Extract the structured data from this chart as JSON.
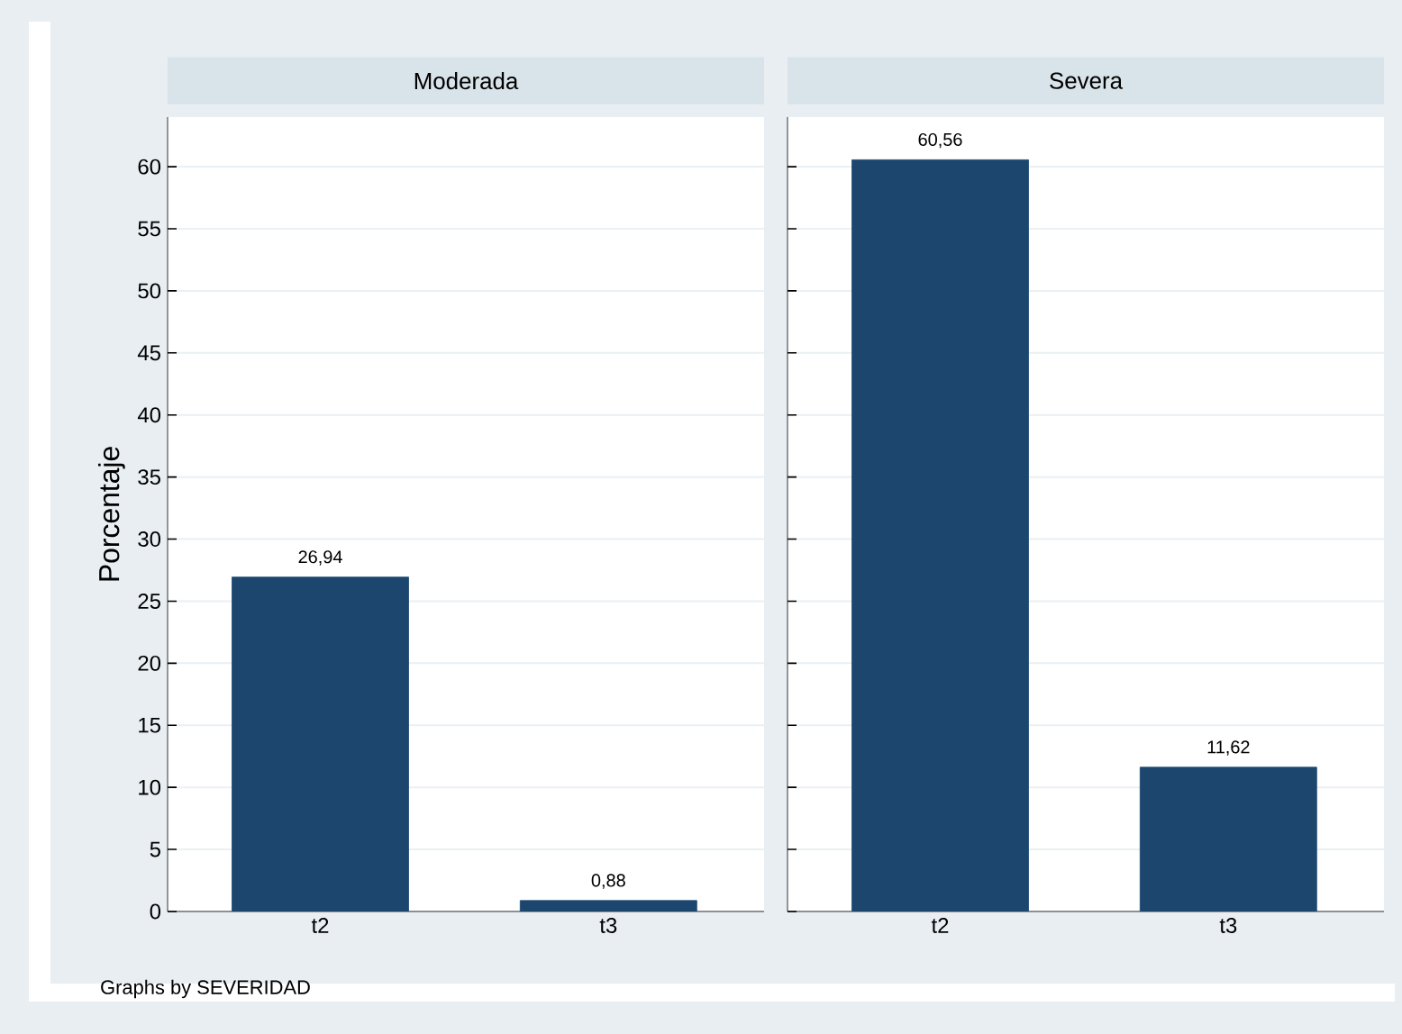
{
  "chart_data": [
    {
      "type": "bar",
      "title": "Moderada",
      "categories": [
        "t2",
        "t3"
      ],
      "values": [
        26.94,
        0.88
      ],
      "value_labels": [
        "26,94",
        "0,88"
      ],
      "color": "#1c466e",
      "ylabel": "Porcentaje",
      "ylim": [
        0,
        64
      ],
      "yticks": [
        0,
        5,
        10,
        15,
        20,
        25,
        30,
        35,
        40,
        45,
        50,
        55,
        60
      ],
      "grid": "y",
      "annotations": [
        "Graphs by SEVERIDAD"
      ]
    },
    {
      "type": "bar",
      "title": "Severa",
      "categories": [
        "t2",
        "t3"
      ],
      "values": [
        60.56,
        11.62
      ],
      "value_labels": [
        "60,56",
        "11,62"
      ],
      "color": "#1c466e",
      "ylim": [
        0,
        64
      ],
      "yticks": [
        0,
        5,
        10,
        15,
        20,
        25,
        30,
        35,
        40,
        45,
        50,
        55,
        60
      ],
      "grid": "y",
      "tick_labels": "x"
    }
  ]
}
